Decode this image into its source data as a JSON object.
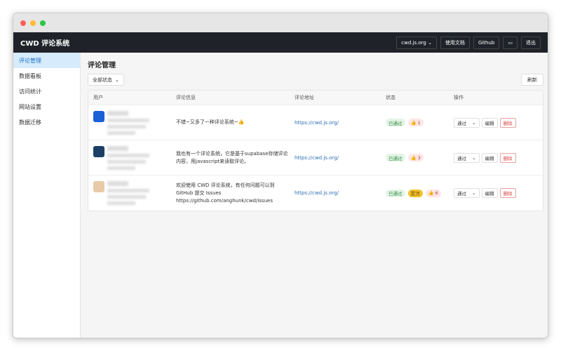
{
  "header": {
    "brand": "CWD 评论系统",
    "site_select": "cwd.js.org",
    "docs": "使用文档",
    "github": "Github",
    "logout": "退出",
    "theme_icon": "monitor-icon"
  },
  "sidebar": {
    "items": [
      {
        "label": "评论管理",
        "active": true
      },
      {
        "label": "数据看板"
      },
      {
        "label": "访问统计"
      },
      {
        "label": "网站设置"
      },
      {
        "label": "数据迁移"
      }
    ]
  },
  "main": {
    "title": "评论管理",
    "filter": "全部状态",
    "refresh": "刷新",
    "columns": [
      "用户",
      "评论信息",
      "评论地址",
      "状态",
      "操作"
    ],
    "rows": [
      {
        "content": "不错~又多了一种评论系统~👍",
        "url": "https://cwd.js.org/",
        "status": "已通过",
        "pinned": "",
        "likes": "1",
        "action": "通过",
        "edit": "编辑",
        "delete": "删除",
        "avatar_color": "#1a5fd6"
      },
      {
        "content": "我也有一个评论系统，它是基于supabase存储评论内容，用javascript来读取评论。",
        "url": "https://cwd.js.org/",
        "status": "已通过",
        "pinned": "",
        "likes": "3",
        "action": "通过",
        "edit": "编辑",
        "delete": "删除",
        "avatar_color": "#1c3f66"
      },
      {
        "content": "欢迎使用 CWD 评论系统，有任何问题可以到 GitHub 提交 Issues https://github.com/anghunk/cwd/issues",
        "url": "https://cwd.js.org/",
        "status": "已通过",
        "pinned": "置顶",
        "likes": "6",
        "action": "通过",
        "edit": "编辑",
        "delete": "删除",
        "avatar_color": "#e8c9a8"
      }
    ]
  }
}
